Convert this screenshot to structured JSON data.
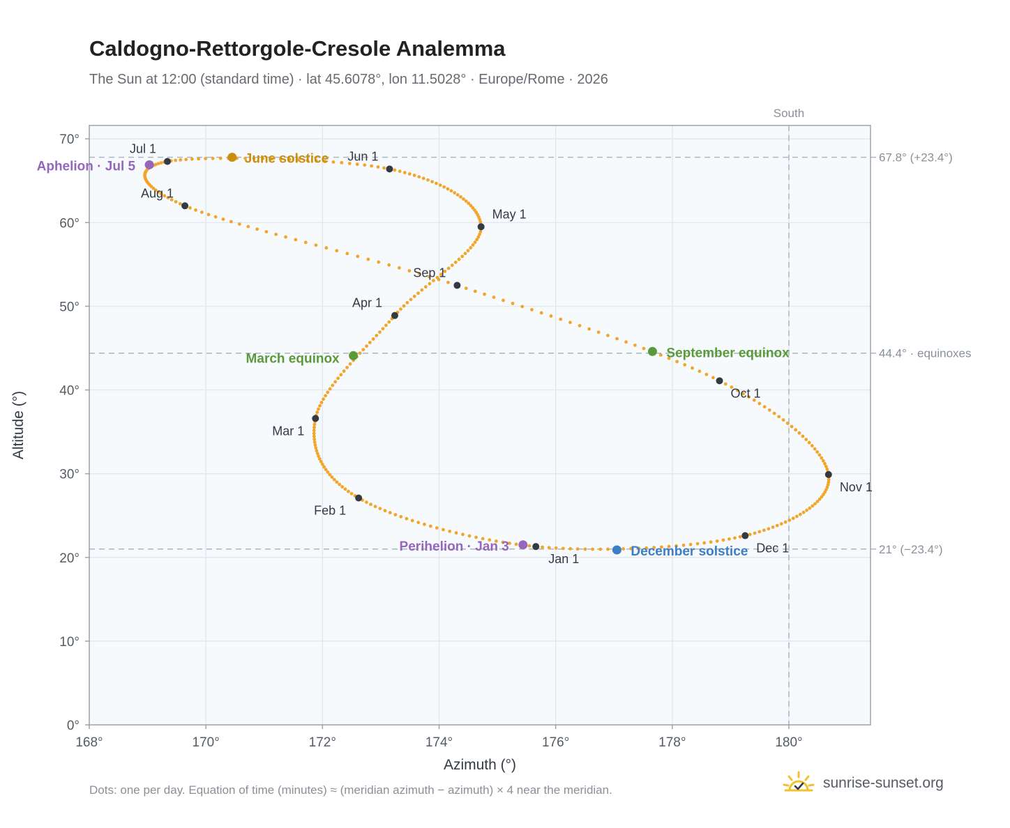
{
  "chart_data": {
    "type": "scatter",
    "title": "Caldogno-Rettorgole-Cresole Analemma",
    "subtitle": "The Sun at 12:00 (standard time) · lat 45.6078°, lon 11.5028° · Europe/Rome · 2026",
    "xlabel": "Azimuth (°)",
    "ylabel": "Altitude (°)",
    "xlim": [
      168,
      181.4
    ],
    "ylim": [
      0,
      71.6
    ],
    "xticks": [
      168,
      170,
      172,
      174,
      176,
      178,
      180
    ],
    "yticks": [
      0,
      10,
      20,
      30,
      40,
      50,
      60,
      70
    ],
    "x_tick_labels": [
      "168°",
      "170°",
      "172°",
      "174°",
      "176°",
      "178°",
      "180°"
    ],
    "y_tick_labels": [
      "0°",
      "10°",
      "20°",
      "30°",
      "40°",
      "50°",
      "60°",
      "70°"
    ],
    "grid": true,
    "colors": {
      "path": "#f2a52b",
      "month": "#333a44",
      "solstice_june": "#c9900f",
      "solstice_dec": "#3c7fc4",
      "equinox": "#5a9a3a",
      "apsis": "#9467bd",
      "refline": "#aab6c0",
      "plot_bg": "#f7fafd"
    },
    "months": [
      {
        "label": "Jan 1",
        "x": 175.66,
        "y": 21.3
      },
      {
        "label": "Feb 1",
        "x": 172.62,
        "y": 27.1
      },
      {
        "label": "Mar 1",
        "x": 171.88,
        "y": 36.6
      },
      {
        "label": "Apr 1",
        "x": 173.24,
        "y": 48.9
      },
      {
        "label": "May 1",
        "x": 174.72,
        "y": 59.5
      },
      {
        "label": "Jun 1",
        "x": 173.15,
        "y": 66.4
      },
      {
        "label": "Jul 1",
        "x": 169.34,
        "y": 67.3
      },
      {
        "label": "Aug 1",
        "x": 169.64,
        "y": 62.0
      },
      {
        "label": "Sep 1",
        "x": 174.31,
        "y": 52.5
      },
      {
        "label": "Oct 1",
        "x": 178.81,
        "y": 41.1
      },
      {
        "label": "Nov 1",
        "x": 180.68,
        "y": 29.9
      },
      {
        "label": "Dec 1",
        "x": 179.25,
        "y": 22.6
      }
    ],
    "events": [
      {
        "label": "June solstice",
        "x": 170.45,
        "y": 67.8,
        "kind": "solstice_june"
      },
      {
        "label": "December solstice",
        "x": 177.05,
        "y": 20.9,
        "kind": "solstice_dec"
      },
      {
        "label": "March equinox",
        "x": 172.53,
        "y": 44.1,
        "kind": "equinox"
      },
      {
        "label": "September equinox",
        "x": 177.66,
        "y": 44.6,
        "kind": "equinox"
      },
      {
        "label": "Aphelion · Jul 5",
        "x": 169.03,
        "y": 66.9,
        "kind": "apsis"
      },
      {
        "label": "Perihelion · Jan 3",
        "x": 175.44,
        "y": 21.5,
        "kind": "apsis"
      }
    ],
    "reference_lines": [
      {
        "axis": "y",
        "value": 67.8,
        "label": "67.8° (+23.4°)"
      },
      {
        "axis": "y",
        "value": 44.4,
        "label": "44.4° · equinoxes"
      },
      {
        "axis": "y",
        "value": 21.0,
        "label": "21° (−23.4°)"
      },
      {
        "axis": "x",
        "value": 180,
        "label": "South"
      }
    ]
  },
  "footnote": "Dots: one per day. Equation of time (minutes) ≈ (meridian azimuth − azimuth) × 4 near the meridian.",
  "brand": {
    "name": "sunrise-sunset.org",
    "icon": "sun-check-icon"
  }
}
